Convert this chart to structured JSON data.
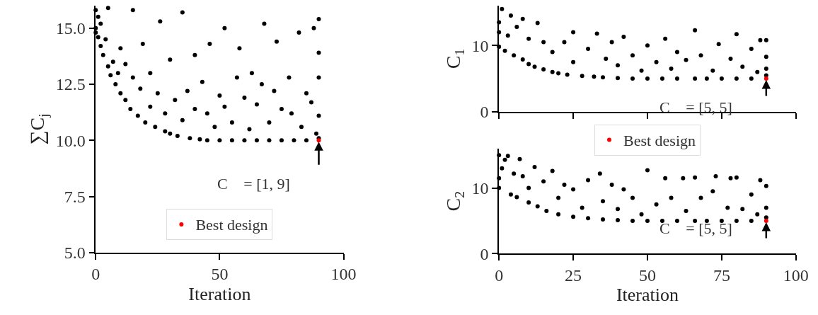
{
  "chart_data": [
    {
      "type": "scatter",
      "xlabel": "Iteration",
      "ylabel": "∑C$_{j}$",
      "xlim": [
        0,
        100
      ],
      "xticks": [
        0,
        50,
        100
      ],
      "ylim": [
        5,
        16
      ],
      "yticks": [
        {
          "value": 5,
          "label": "5.0"
        },
        {
          "value": 7.5,
          "label": "7.5"
        },
        {
          "value": 10,
          "label": "10.0"
        },
        {
          "value": 12.5,
          "label": "12.5"
        },
        {
          "value": 15,
          "label": "15.0"
        }
      ],
      "marker": "circle",
      "grid": false,
      "legend": "bottom",
      "annotations": [
        "C⃗ = [1, 9]"
      ],
      "series": [
        {
          "color": "#000000",
          "x": [
            0,
            0,
            0,
            1,
            1,
            2,
            2,
            3,
            4,
            5,
            5,
            6,
            7,
            8,
            9,
            10,
            10,
            12,
            12,
            14,
            15,
            15,
            17,
            18,
            19,
            20,
            22,
            22,
            24,
            25,
            26,
            28,
            28,
            30,
            30,
            32,
            33,
            35,
            35,
            37,
            38,
            40,
            40,
            42,
            43,
            45,
            45,
            46,
            48,
            50,
            50,
            52,
            52,
            55,
            55,
            57,
            58,
            60,
            60,
            62,
            63,
            65,
            65,
            67,
            68,
            70,
            70,
            72,
            73,
            75,
            75,
            78,
            79,
            80,
            82,
            83,
            85,
            85,
            87,
            88,
            89,
            90,
            90,
            90,
            90,
            90
          ],
          "values": [
            15.8,
            15,
            14.8,
            15.5,
            14.6,
            15.2,
            14.2,
            13.8,
            14.5,
            13.3,
            15.9,
            12.9,
            13.5,
            12.5,
            13,
            12.1,
            14.1,
            11.8,
            13.4,
            11.4,
            12.8,
            15.8,
            11.1,
            12.3,
            14.3,
            10.8,
            11.5,
            13,
            10.6,
            12.1,
            15.3,
            10.4,
            11.2,
            10.3,
            13.6,
            11.8,
            10.2,
            10.9,
            15.7,
            12.2,
            10.1,
            11.4,
            13.8,
            10.05,
            12.6,
            10,
            11.2,
            14.3,
            10.6,
            10,
            12,
            11.5,
            15,
            10,
            10.8,
            12.8,
            14.1,
            10,
            11.9,
            10.5,
            13,
            10,
            11.6,
            12.5,
            15.2,
            10,
            10.8,
            12.2,
            14.4,
            10,
            11.4,
            12.8,
            11.2,
            10,
            14.8,
            10.6,
            10,
            12.1,
            11.7,
            15,
            10.3,
            10.1,
            11.1,
            12.8,
            13.9,
            15.4
          ]
        },
        {
          "name": "Best design",
          "color": "#ff0000",
          "x": [
            90
          ],
          "values": [
            10
          ]
        }
      ]
    },
    {
      "type": "scatter",
      "ylabel": "C$_{1}$",
      "xlim": [
        0,
        100
      ],
      "xticks": [
        0,
        25,
        50,
        75,
        100
      ],
      "ylim": [
        0,
        16
      ],
      "yticks": [
        0,
        10
      ],
      "tick_labels": "y",
      "marker": "circle",
      "grid": false,
      "legend": "bottom",
      "annotations": [
        "C⃗ = [5, 5]"
      ],
      "series": [
        {
          "color": "#000000",
          "x": [
            0,
            0,
            0,
            1,
            2,
            3,
            4,
            5,
            6,
            8,
            8,
            10,
            10,
            12,
            13,
            15,
            15,
            18,
            18,
            20,
            22,
            23,
            25,
            25,
            28,
            30,
            32,
            33,
            35,
            36,
            38,
            40,
            40,
            42,
            45,
            45,
            48,
            50,
            50,
            53,
            55,
            56,
            58,
            60,
            60,
            63,
            66,
            66,
            68,
            70,
            72,
            74,
            75,
            78,
            80,
            80,
            82,
            85,
            85,
            87,
            88,
            90,
            90,
            90,
            90
          ],
          "values": [
            9.8,
            12,
            13.5,
            15.5,
            9.2,
            11.5,
            14.5,
            8.5,
            12.8,
            7.9,
            14,
            7.2,
            11,
            6.8,
            13.4,
            6.4,
            10.5,
            6,
            9,
            5.8,
            10.5,
            5.6,
            7.5,
            12,
            5.4,
            9.5,
            5.3,
            11.8,
            5.2,
            8,
            10.5,
            5.1,
            7,
            11.3,
            5,
            8.5,
            6.2,
            5,
            10,
            7.5,
            5,
            11,
            6.5,
            5,
            9,
            7.8,
            5,
            12.3,
            8.5,
            5,
            6.2,
            10.2,
            5,
            8,
            5,
            11.7,
            6.8,
            5,
            9.5,
            6,
            10.8,
            5.5,
            6.5,
            8.3,
            10.8
          ]
        },
        {
          "name": "Best design",
          "color": "#ff0000",
          "x": [
            90
          ],
          "values": [
            5
          ]
        }
      ]
    },
    {
      "type": "scatter",
      "xlabel": "Iteration",
      "ylabel": "C$_{2}$",
      "xlim": [
        0,
        100
      ],
      "xticks": [
        0,
        25,
        50,
        75,
        100
      ],
      "ylim": [
        0,
        16
      ],
      "yticks": [
        0,
        10
      ],
      "marker": "circle",
      "grid": false,
      "annotations": [
        "C⃗ = [5, 5]"
      ],
      "series": [
        {
          "color": "#000000",
          "x": [
            0,
            0,
            0,
            1,
            2,
            3,
            4,
            5,
            6,
            7,
            8,
            10,
            10,
            12,
            13,
            15,
            16,
            18,
            20,
            20,
            22,
            25,
            25,
            28,
            30,
            30,
            34,
            35,
            35,
            38,
            40,
            40,
            42,
            45,
            45,
            48,
            50,
            50,
            53,
            55,
            56,
            58,
            60,
            62,
            63,
            66,
            66,
            68,
            70,
            72,
            73,
            75,
            77,
            78,
            80,
            80,
            82,
            85,
            85,
            87,
            88,
            90,
            90,
            90
          ],
          "values": [
            10,
            11.5,
            15,
            13,
            14.3,
            14.9,
            9,
            12.2,
            8.6,
            14.4,
            11.8,
            7.8,
            10,
            13.2,
            7.2,
            11,
            6.5,
            12.6,
            6,
            8.5,
            10.5,
            5.6,
            9.8,
            7,
            5.4,
            11.2,
            12.2,
            5.2,
            8,
            10.5,
            5.1,
            6.8,
            9.8,
            5,
            8.5,
            6,
            5,
            12.7,
            7.5,
            5,
            11.5,
            8.5,
            5,
            11.5,
            6.5,
            5,
            11.6,
            8.5,
            5,
            9.5,
            11.8,
            5,
            7,
            11.5,
            5,
            11.6,
            6.8,
            5,
            9,
            6,
            11.2,
            5.5,
            7,
            10.3
          ]
        },
        {
          "color": "#ff0000",
          "x": [
            90
          ],
          "values": [
            5
          ]
        }
      ]
    }
  ]
}
